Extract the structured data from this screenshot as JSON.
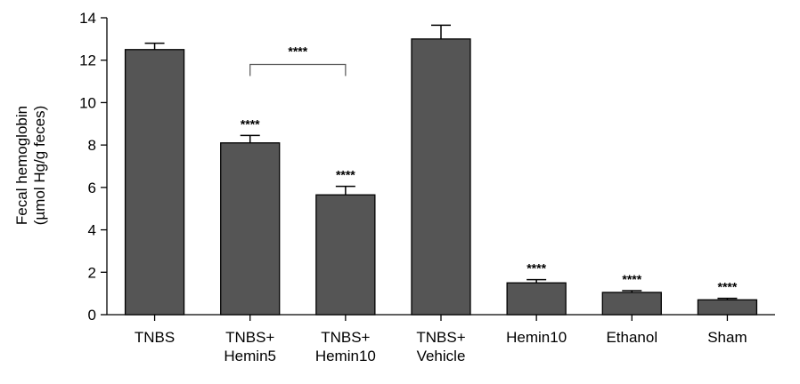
{
  "chart_data": {
    "type": "bar",
    "title": "",
    "ylabel_lines": [
      "Fecal hemoglobin",
      "(µmol Hg/g feces)"
    ],
    "xlabel": "",
    "ylim": [
      0,
      14
    ],
    "yticks": [
      0,
      2,
      4,
      6,
      8,
      10,
      12,
      14
    ],
    "categories": [
      [
        "TNBS"
      ],
      [
        "TNBS+",
        "Hemin5"
      ],
      [
        "TNBS+",
        "Hemin10"
      ],
      [
        "TNBS+",
        "Vehicle"
      ],
      [
        "Hemin10"
      ],
      [
        "Ethanol"
      ],
      [
        "Sham"
      ]
    ],
    "values": [
      12.5,
      8.1,
      5.65,
      13.0,
      1.5,
      1.05,
      0.7
    ],
    "errors": [
      0.3,
      0.35,
      0.4,
      0.65,
      0.15,
      0.08,
      0.07
    ],
    "significance": [
      "",
      "****",
      "****",
      "",
      "****",
      "****",
      "****"
    ],
    "comparisons": [
      {
        "from": 1,
        "to": 2,
        "label": "****",
        "y": 11.8
      }
    ],
    "bar_color": "#555555",
    "bar_edge_color": "#000000",
    "grid": false,
    "legend": "none"
  }
}
